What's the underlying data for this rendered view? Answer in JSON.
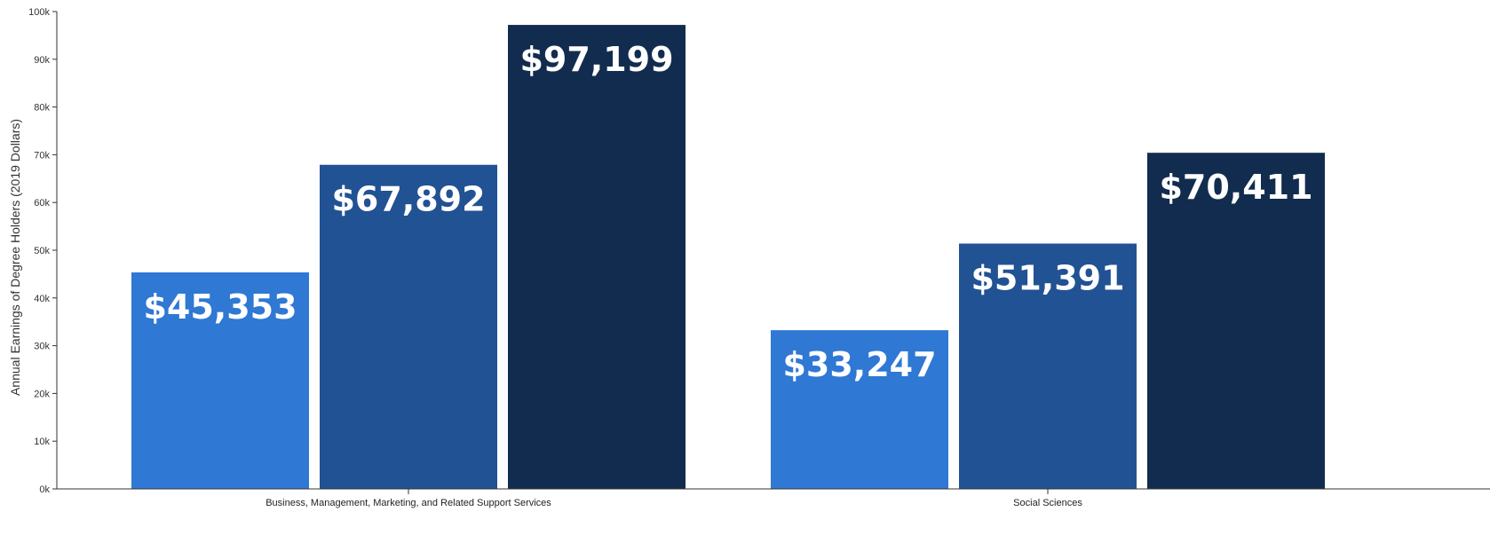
{
  "chart_data": {
    "type": "bar",
    "title": "",
    "xlabel": "",
    "ylabel": "Annual Earnings of Degree Holders (2019 Dollars)",
    "ylim": [
      0,
      100000
    ],
    "yticks": [
      0,
      10000,
      20000,
      30000,
      40000,
      50000,
      60000,
      70000,
      80000,
      90000,
      100000
    ],
    "ytick_labels": [
      "0k",
      "10k",
      "20k",
      "30k",
      "40k",
      "50k",
      "60k",
      "70k",
      "80k",
      "90k",
      "100k"
    ],
    "categories": [
      "Business, Management, Marketing, and Related Support Services",
      "Social Sciences"
    ],
    "series": [
      {
        "color": "#2f78d4",
        "values": [
          45353,
          33247
        ],
        "labels": [
          "$45,353",
          "$33,247"
        ]
      },
      {
        "color": "#215293",
        "values": [
          67892,
          51391
        ],
        "labels": [
          "$67,892",
          "$51,391"
        ]
      },
      {
        "color": "#122c4f",
        "values": [
          97199,
          70411
        ],
        "labels": [
          "$97,199",
          "$70,411"
        ]
      }
    ],
    "grid": false,
    "legend": "none"
  }
}
